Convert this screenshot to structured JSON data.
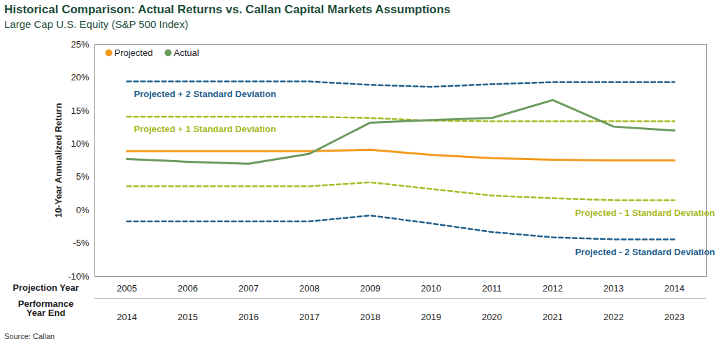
{
  "chart_data": {
    "type": "line",
    "title": "Historical Comparison: Actual Returns vs. Callan Capital Markets Assumptions",
    "subtitle": "Large Cap U.S. Equity (S&P 500 Index)",
    "source": "Source: Callan",
    "y_label": "10-Year Annualized Return",
    "x_label": "Projection Year",
    "categories": [
      "2005",
      "2006",
      "2007",
      "2008",
      "2009",
      "2010",
      "2011",
      "2012",
      "2013",
      "2014"
    ],
    "x2_label": "Performance Year End",
    "x2_categories": [
      "2014",
      "2015",
      "2016",
      "2017",
      "2018",
      "2019",
      "2020",
      "2021",
      "2022",
      "2023"
    ],
    "ylim": [
      -10,
      25
    ],
    "yticks": [
      {
        "value": -10,
        "label": "-10%"
      },
      {
        "value": -5,
        "label": "-5%"
      },
      {
        "value": 0,
        "label": "0%"
      },
      {
        "value": 5,
        "label": "5%"
      },
      {
        "value": 10,
        "label": "10%"
      },
      {
        "value": 15,
        "label": "15%"
      },
      {
        "value": 20,
        "label": "20%"
      },
      {
        "value": 25,
        "label": "25%"
      }
    ],
    "grid": false,
    "legend": "top-left",
    "series": [
      {
        "name": "Projected + 2 Standard Deviation",
        "color": "#1f5e8c",
        "line_style": "dashed",
        "values": [
          19.4,
          19.4,
          19.4,
          19.4,
          18.9,
          18.6,
          19.0,
          19.3,
          19.3,
          19.3
        ]
      },
      {
        "name": "Projected + 1 Standard Deviation",
        "color": "#a9b923",
        "line_style": "dashed",
        "values": [
          14.1,
          14.1,
          14.1,
          14.1,
          13.9,
          13.5,
          13.4,
          13.4,
          13.4,
          13.4
        ]
      },
      {
        "name": "Projected - 1 Standard Deviation",
        "color": "#a9b923",
        "line_style": "dashed",
        "values": [
          3.6,
          3.6,
          3.6,
          3.6,
          4.2,
          3.2,
          2.2,
          1.8,
          1.5,
          1.5
        ]
      },
      {
        "name": "Projected - 2 Standard Deviation",
        "color": "#1f5e8c",
        "line_style": "dashed",
        "values": [
          -1.7,
          -1.7,
          -1.7,
          -1.7,
          -0.8,
          -2.0,
          -3.3,
          -4.1,
          -4.4,
          -4.4
        ]
      },
      {
        "name": "Projected",
        "color": "#f39a1e",
        "line_style": "solid",
        "values": [
          8.9,
          8.9,
          8.9,
          8.9,
          9.1,
          8.35,
          7.85,
          7.6,
          7.5,
          7.5
        ]
      },
      {
        "name": "Actual",
        "color": "#6b9a5c",
        "line_style": "solid",
        "values": [
          7.7,
          7.3,
          7.0,
          8.5,
          13.2,
          13.6,
          13.9,
          16.6,
          12.6,
          12.0
        ]
      }
    ]
  }
}
